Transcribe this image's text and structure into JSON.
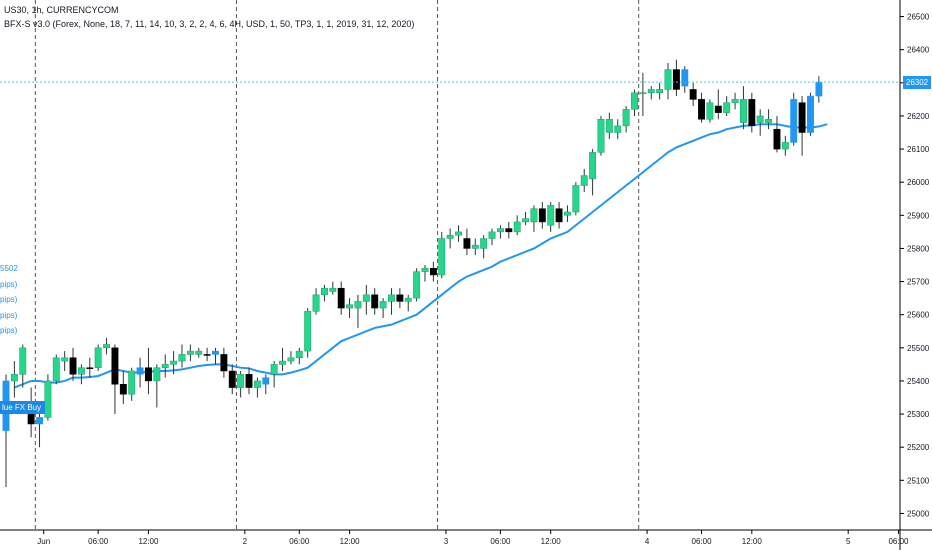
{
  "header": {
    "symbol_line": "US30, 1h, CURRENCYCOM",
    "indicator_line": "BFX-S v3.0 (Forex, None, 18, 7, 11, 14, 10, 3, 2, 2, 4, 6, 4H, USD, 1, 50, TP3, 1, 1, 2019, 31, 12, 2020)"
  },
  "side_labels": [
    "5502",
    "pips)",
    "pips)",
    "pips)",
    "pips)"
  ],
  "buy_tag": "lue FX Buy",
  "price_line": {
    "value": 26302,
    "label": "26302"
  },
  "colors": {
    "up": "#26d68b",
    "down": "#000000",
    "signal": "#2196f3",
    "ma": "#2196f3",
    "price_line": "#4fc3d8",
    "axis_text": "#131722"
  },
  "chart_data": {
    "type": "candlestick",
    "ylim": [
      24950,
      26550
    ],
    "y_ticks": [
      25000,
      25100,
      25200,
      25300,
      25400,
      25500,
      25600,
      25700,
      25800,
      25900,
      26000,
      26100,
      26200,
      26300,
      26400,
      26500
    ],
    "x_ticks": [
      {
        "label": "Jun",
        "bar": 4.5
      },
      {
        "label": "06:00",
        "bar": 11
      },
      {
        "label": "12:00",
        "bar": 17
      },
      {
        "label": "2",
        "bar": 28.5
      },
      {
        "label": "06:00",
        "bar": 35
      },
      {
        "label": "12:00",
        "bar": 41
      },
      {
        "label": "3",
        "bar": 52.5
      },
      {
        "label": "06:00",
        "bar": 59
      },
      {
        "label": "12:00",
        "bar": 65
      },
      {
        "label": "4",
        "bar": 76.5
      },
      {
        "label": "06:00",
        "bar": 83
      },
      {
        "label": "12:00",
        "bar": 89
      },
      {
        "label": "5",
        "bar": 100.5
      },
      {
        "label": "06:00",
        "bar": 106.5
      }
    ],
    "session_separators": [
      3.5,
      27.5,
      51.5,
      75.5
    ],
    "candles": [
      {
        "o": 25250,
        "h": 25420,
        "l": 25080,
        "c": 25400,
        "t": "signal"
      },
      {
        "o": 25400,
        "h": 25460,
        "l": 25350,
        "c": 25420,
        "t": "up"
      },
      {
        "o": 25420,
        "h": 25510,
        "l": 25380,
        "c": 25500,
        "t": "up"
      },
      {
        "o": 25300,
        "h": 25380,
        "l": 25230,
        "c": 25270,
        "t": "down"
      },
      {
        "o": 25270,
        "h": 25310,
        "l": 25200,
        "c": 25290,
        "t": "signal"
      },
      {
        "o": 25290,
        "h": 25420,
        "l": 25280,
        "c": 25400,
        "t": "up"
      },
      {
        "o": 25400,
        "h": 25480,
        "l": 25390,
        "c": 25470,
        "t": "up"
      },
      {
        "o": 25460,
        "h": 25490,
        "l": 25430,
        "c": 25470,
        "t": "up"
      },
      {
        "o": 25470,
        "h": 25500,
        "l": 25400,
        "c": 25420,
        "t": "down"
      },
      {
        "o": 25420,
        "h": 25450,
        "l": 25390,
        "c": 25440,
        "t": "up"
      },
      {
        "o": 25440,
        "h": 25470,
        "l": 25410,
        "c": 25440,
        "t": "down"
      },
      {
        "o": 25440,
        "h": 25510,
        "l": 25430,
        "c": 25500,
        "t": "up"
      },
      {
        "o": 25500,
        "h": 25530,
        "l": 25480,
        "c": 25510,
        "t": "up"
      },
      {
        "o": 25500,
        "h": 25510,
        "l": 25300,
        "c": 25390,
        "t": "down"
      },
      {
        "o": 25390,
        "h": 25430,
        "l": 25330,
        "c": 25360,
        "t": "down"
      },
      {
        "o": 25360,
        "h": 25440,
        "l": 25340,
        "c": 25430,
        "t": "up"
      },
      {
        "o": 25440,
        "h": 25470,
        "l": 25380,
        "c": 25420,
        "t": "signal"
      },
      {
        "o": 25440,
        "h": 25500,
        "l": 25360,
        "c": 25400,
        "t": "down"
      },
      {
        "o": 25400,
        "h": 25450,
        "l": 25320,
        "c": 25440,
        "t": "up"
      },
      {
        "o": 25440,
        "h": 25480,
        "l": 25410,
        "c": 25450,
        "t": "up"
      },
      {
        "o": 25450,
        "h": 25490,
        "l": 25420,
        "c": 25460,
        "t": "up"
      },
      {
        "o": 25460,
        "h": 25510,
        "l": 25440,
        "c": 25480,
        "t": "up"
      },
      {
        "o": 25480,
        "h": 25510,
        "l": 25460,
        "c": 25490,
        "t": "up"
      },
      {
        "o": 25490,
        "h": 25500,
        "l": 25470,
        "c": 25480,
        "t": "up"
      },
      {
        "o": 25480,
        "h": 25500,
        "l": 25460,
        "c": 25480,
        "t": "down"
      },
      {
        "o": 25490,
        "h": 25500,
        "l": 25450,
        "c": 25480,
        "t": "signal"
      },
      {
        "o": 25480,
        "h": 25500,
        "l": 25410,
        "c": 25430,
        "t": "down"
      },
      {
        "o": 25430,
        "h": 25450,
        "l": 25360,
        "c": 25380,
        "t": "down"
      },
      {
        "o": 25380,
        "h": 25430,
        "l": 25350,
        "c": 25420,
        "t": "up"
      },
      {
        "o": 25420,
        "h": 25440,
        "l": 25360,
        "c": 25380,
        "t": "down"
      },
      {
        "o": 25380,
        "h": 25410,
        "l": 25350,
        "c": 25400,
        "t": "up"
      },
      {
        "o": 25390,
        "h": 25420,
        "l": 25360,
        "c": 25410,
        "t": "signal"
      },
      {
        "o": 25420,
        "h": 25460,
        "l": 25380,
        "c": 25450,
        "t": "up"
      },
      {
        "o": 25450,
        "h": 25500,
        "l": 25430,
        "c": 25460,
        "t": "up"
      },
      {
        "o": 25460,
        "h": 25490,
        "l": 25450,
        "c": 25470,
        "t": "up"
      },
      {
        "o": 25470,
        "h": 25500,
        "l": 25450,
        "c": 25490,
        "t": "up"
      },
      {
        "o": 25490,
        "h": 25620,
        "l": 25470,
        "c": 25610,
        "t": "up"
      },
      {
        "o": 25610,
        "h": 25680,
        "l": 25600,
        "c": 25660,
        "t": "up"
      },
      {
        "o": 25660,
        "h": 25690,
        "l": 25640,
        "c": 25680,
        "t": "up"
      },
      {
        "o": 25680,
        "h": 25700,
        "l": 25660,
        "c": 25670,
        "t": "up"
      },
      {
        "o": 25680,
        "h": 25700,
        "l": 25600,
        "c": 25620,
        "t": "down"
      },
      {
        "o": 25620,
        "h": 25650,
        "l": 25590,
        "c": 25630,
        "t": "up"
      },
      {
        "o": 25620,
        "h": 25660,
        "l": 25560,
        "c": 25640,
        "t": "up"
      },
      {
        "o": 25640,
        "h": 25690,
        "l": 25600,
        "c": 25660,
        "t": "up"
      },
      {
        "o": 25660,
        "h": 25680,
        "l": 25600,
        "c": 25620,
        "t": "down"
      },
      {
        "o": 25620,
        "h": 25650,
        "l": 25590,
        "c": 25640,
        "t": "up"
      },
      {
        "o": 25640,
        "h": 25680,
        "l": 25600,
        "c": 25660,
        "t": "up"
      },
      {
        "o": 25660,
        "h": 25680,
        "l": 25620,
        "c": 25640,
        "t": "down"
      },
      {
        "o": 25640,
        "h": 25660,
        "l": 25610,
        "c": 25650,
        "t": "up"
      },
      {
        "o": 25650,
        "h": 25740,
        "l": 25640,
        "c": 25730,
        "t": "up"
      },
      {
        "o": 25730,
        "h": 25750,
        "l": 25700,
        "c": 25740,
        "t": "up"
      },
      {
        "o": 25740,
        "h": 25760,
        "l": 25700,
        "c": 25720,
        "t": "down"
      },
      {
        "o": 25720,
        "h": 25850,
        "l": 25710,
        "c": 25830,
        "t": "up"
      },
      {
        "o": 25830,
        "h": 25860,
        "l": 25800,
        "c": 25840,
        "t": "up"
      },
      {
        "o": 25840,
        "h": 25870,
        "l": 25820,
        "c": 25850,
        "t": "up"
      },
      {
        "o": 25830,
        "h": 25860,
        "l": 25780,
        "c": 25800,
        "t": "down"
      },
      {
        "o": 25800,
        "h": 25830,
        "l": 25780,
        "c": 25810,
        "t": "up"
      },
      {
        "o": 25800,
        "h": 25840,
        "l": 25770,
        "c": 25830,
        "t": "up"
      },
      {
        "o": 25830,
        "h": 25860,
        "l": 25810,
        "c": 25850,
        "t": "up"
      },
      {
        "o": 25850,
        "h": 25870,
        "l": 25830,
        "c": 25860,
        "t": "up"
      },
      {
        "o": 25860,
        "h": 25880,
        "l": 25830,
        "c": 25850,
        "t": "down"
      },
      {
        "o": 25850,
        "h": 25900,
        "l": 25840,
        "c": 25880,
        "t": "up"
      },
      {
        "o": 25880,
        "h": 25910,
        "l": 25870,
        "c": 25890,
        "t": "up"
      },
      {
        "o": 25880,
        "h": 25930,
        "l": 25850,
        "c": 25920,
        "t": "up"
      },
      {
        "o": 25920,
        "h": 25940,
        "l": 25860,
        "c": 25880,
        "t": "down"
      },
      {
        "o": 25870,
        "h": 25940,
        "l": 25850,
        "c": 25930,
        "t": "up"
      },
      {
        "o": 25920,
        "h": 25940,
        "l": 25860,
        "c": 25880,
        "t": "down"
      },
      {
        "o": 25900,
        "h": 25930,
        "l": 25880,
        "c": 25910,
        "t": "up"
      },
      {
        "o": 25910,
        "h": 26000,
        "l": 25900,
        "c": 25990,
        "t": "up"
      },
      {
        "o": 25990,
        "h": 26040,
        "l": 25970,
        "c": 26020,
        "t": "up"
      },
      {
        "o": 26010,
        "h": 26100,
        "l": 25960,
        "c": 26090,
        "t": "up"
      },
      {
        "o": 26090,
        "h": 26200,
        "l": 26080,
        "c": 26190,
        "t": "up"
      },
      {
        "o": 26190,
        "h": 26210,
        "l": 26130,
        "c": 26150,
        "t": "up"
      },
      {
        "o": 26150,
        "h": 26190,
        "l": 26130,
        "c": 26170,
        "t": "up"
      },
      {
        "o": 26170,
        "h": 26230,
        "l": 26150,
        "c": 26220,
        "t": "up"
      },
      {
        "o": 26220,
        "h": 26280,
        "l": 26200,
        "c": 26270,
        "t": "up"
      },
      {
        "o": 26270,
        "h": 26330,
        "l": 26200,
        "c": 26270,
        "t": "up"
      },
      {
        "o": 26270,
        "h": 26290,
        "l": 26250,
        "c": 26280,
        "t": "up"
      },
      {
        "o": 26270,
        "h": 26300,
        "l": 26250,
        "c": 26280,
        "t": "up"
      },
      {
        "o": 26280,
        "h": 26360,
        "l": 26250,
        "c": 26340,
        "t": "up"
      },
      {
        "o": 26340,
        "h": 26370,
        "l": 26260,
        "c": 26280,
        "t": "down"
      },
      {
        "o": 26340,
        "h": 26350,
        "l": 26270,
        "c": 26290,
        "t": "signal"
      },
      {
        "o": 26280,
        "h": 26300,
        "l": 26230,
        "c": 26250,
        "t": "down"
      },
      {
        "o": 26250,
        "h": 26270,
        "l": 26180,
        "c": 26190,
        "t": "down"
      },
      {
        "o": 26190,
        "h": 26250,
        "l": 26180,
        "c": 26240,
        "t": "up"
      },
      {
        "o": 26230,
        "h": 26280,
        "l": 26190,
        "c": 26210,
        "t": "down"
      },
      {
        "o": 26210,
        "h": 26260,
        "l": 26200,
        "c": 26240,
        "t": "up"
      },
      {
        "o": 26240,
        "h": 26270,
        "l": 26220,
        "c": 26250,
        "t": "up"
      },
      {
        "o": 26250,
        "h": 26290,
        "l": 26160,
        "c": 26180,
        "t": "up"
      },
      {
        "o": 26250,
        "h": 26270,
        "l": 26150,
        "c": 26170,
        "t": "down"
      },
      {
        "o": 26180,
        "h": 26220,
        "l": 26140,
        "c": 26200,
        "t": "up"
      },
      {
        "o": 26180,
        "h": 26220,
        "l": 26160,
        "c": 26190,
        "t": "up"
      },
      {
        "o": 26160,
        "h": 26200,
        "l": 26090,
        "c": 26100,
        "t": "down"
      },
      {
        "o": 26100,
        "h": 26140,
        "l": 26080,
        "c": 26120,
        "t": "up"
      },
      {
        "o": 26120,
        "h": 26270,
        "l": 26110,
        "c": 26250,
        "t": "signal"
      },
      {
        "o": 26240,
        "h": 26260,
        "l": 26080,
        "c": 26150,
        "t": "down"
      },
      {
        "o": 26150,
        "h": 26270,
        "l": 26140,
        "c": 26260,
        "t": "signal"
      },
      {
        "o": 26260,
        "h": 26320,
        "l": 26240,
        "c": 26302,
        "t": "signal"
      }
    ],
    "ma": [
      25380,
      25390,
      25400,
      25400,
      25395,
      25395,
      25400,
      25410,
      25410,
      25412,
      25415,
      25425,
      25435,
      25430,
      25425,
      25425,
      25428,
      25430,
      25430,
      25432,
      25435,
      25440,
      25445,
      25448,
      25450,
      25450,
      25445,
      25440,
      25438,
      25430,
      25425,
      25420,
      25420,
      25425,
      25432,
      25440,
      25460,
      25480,
      25500,
      25520,
      25530,
      25540,
      25550,
      25560,
      25565,
      25570,
      25580,
      25590,
      25600,
      25620,
      25640,
      25660,
      25680,
      25700,
      25715,
      25725,
      25735,
      25745,
      25760,
      25770,
      25780,
      25790,
      25800,
      25815,
      25830,
      25840,
      25850,
      25870,
      25890,
      25910,
      25930,
      25950,
      25970,
      25990,
      26010,
      26030,
      26050,
      26070,
      26090,
      26105,
      26115,
      26125,
      26135,
      26145,
      26150,
      26160,
      26165,
      26170,
      26172,
      26175,
      26175,
      26175,
      26170,
      26165,
      26165,
      26165,
      26168,
      26175
    ]
  }
}
